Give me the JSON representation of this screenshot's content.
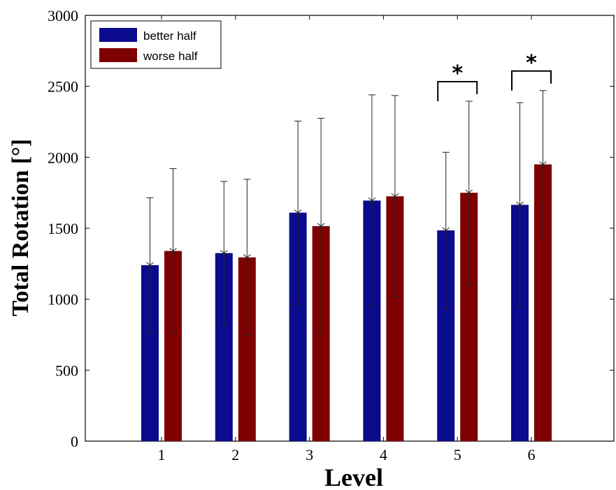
{
  "chart_data": {
    "type": "bar",
    "title": "",
    "xlabel": "Level",
    "ylabel": "Total Rotation [°]",
    "ylim": [
      0,
      3000
    ],
    "yticks": [
      0,
      500,
      1000,
      1500,
      2000,
      2500,
      3000
    ],
    "categories": [
      "1",
      "2",
      "3",
      "4",
      "5",
      "6"
    ],
    "legend_position": "top-left",
    "grid": false,
    "series": [
      {
        "name": "better half",
        "color": "#0b0b8e",
        "values": [
          1240,
          1325,
          1610,
          1695,
          1485,
          1665
        ],
        "error": [
          475,
          505,
          645,
          745,
          550,
          720
        ]
      },
      {
        "name": "worse half",
        "color": "#7f0000",
        "values": [
          1340,
          1295,
          1515,
          1725,
          1750,
          1950
        ],
        "error": [
          580,
          550,
          760,
          710,
          645,
          520
        ]
      }
    ],
    "significance": [
      {
        "category": "5",
        "label": "*"
      },
      {
        "category": "6",
        "label": "*"
      }
    ]
  }
}
